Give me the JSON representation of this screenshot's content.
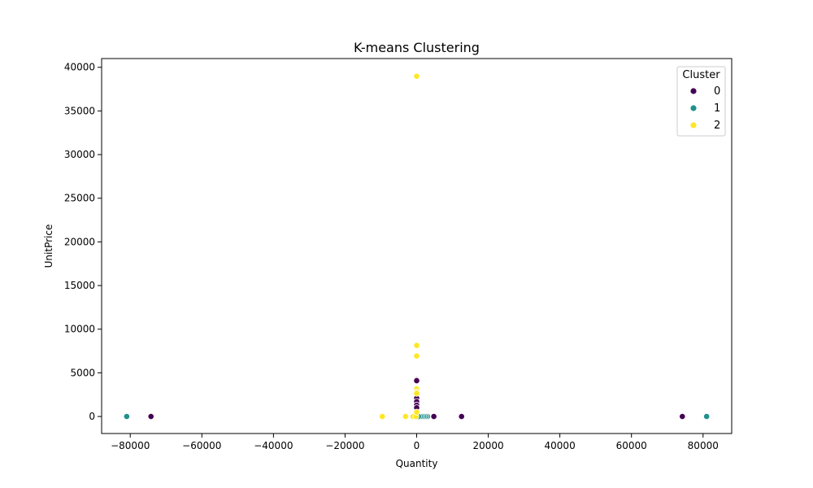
{
  "chart_data": {
    "type": "scatter",
    "title": "K-means Clustering",
    "xlabel": "Quantity",
    "ylabel": "UnitPrice",
    "xlim": [
      -88000,
      88000
    ],
    "ylim": [
      -1950,
      41000
    ],
    "x_ticks": [
      -80000,
      -60000,
      -40000,
      -20000,
      0,
      20000,
      40000,
      60000,
      80000
    ],
    "x_tick_labels": [
      "−80000",
      "−60000",
      "−40000",
      "−20000",
      "0",
      "20000",
      "40000",
      "60000",
      "80000"
    ],
    "y_ticks": [
      0,
      5000,
      10000,
      15000,
      20000,
      25000,
      30000,
      35000,
      40000
    ],
    "y_tick_labels": [
      "0",
      "5000",
      "10000",
      "15000",
      "20000",
      "25000",
      "30000",
      "35000",
      "40000"
    ],
    "grid": false,
    "legend": {
      "title": "Cluster",
      "placement": "top-right"
    },
    "series": [
      {
        "name": "0",
        "color": "#440154",
        "points": [
          [
            -74215,
            1
          ],
          [
            74215,
            1
          ],
          [
            12540,
            0.5
          ],
          [
            4800,
            1
          ],
          [
            0,
            4200
          ],
          [
            0,
            4100
          ],
          [
            0,
            2100
          ],
          [
            0,
            1700
          ],
          [
            0,
            1300
          ],
          [
            0,
            1000
          ],
          [
            0,
            0
          ],
          [
            100,
            0
          ],
          [
            0,
            300
          ]
        ]
      },
      {
        "name": "1",
        "color": "#21918c",
        "points": [
          [
            -80995,
            2
          ],
          [
            80995,
            2
          ],
          [
            3000,
            5
          ],
          [
            2500,
            3
          ],
          [
            2000,
            4
          ],
          [
            1500,
            2
          ],
          [
            1000,
            5
          ],
          [
            500,
            3
          ]
        ]
      },
      {
        "name": "2",
        "color": "#fde725",
        "points": [
          [
            0,
            38970
          ],
          [
            0,
            8143
          ],
          [
            0,
            6930
          ],
          [
            0,
            3155
          ],
          [
            0,
            2800
          ],
          [
            0,
            2650
          ],
          [
            -9600,
            1
          ],
          [
            -3114,
            0
          ],
          [
            -1000,
            0
          ],
          [
            -200,
            0
          ],
          [
            0,
            500
          ]
        ]
      }
    ]
  }
}
